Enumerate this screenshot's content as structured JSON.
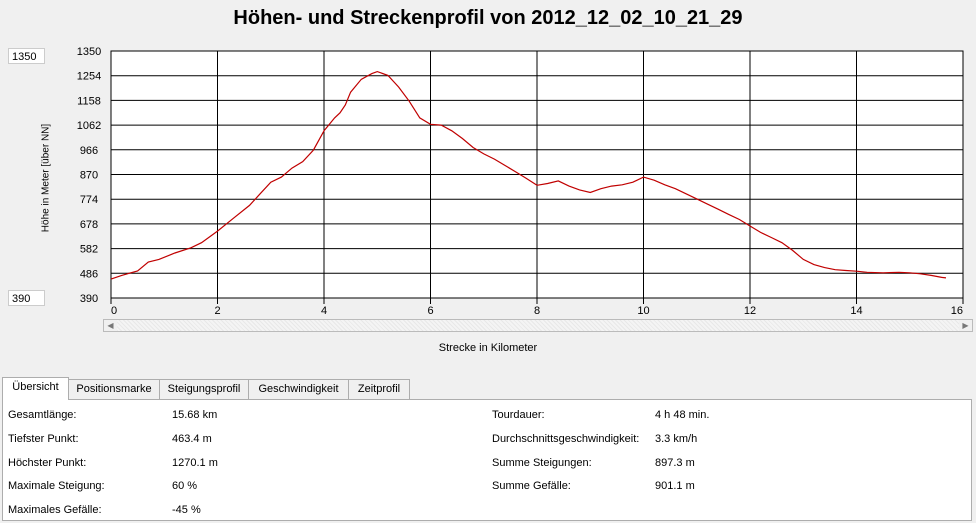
{
  "title": "Höhen- und Streckenprofil von 2012_12_02_10_21_29",
  "ymax_box": "1350",
  "ymin_box": "390",
  "chart_data": {
    "type": "line",
    "title": "Höhen- und Streckenprofil von 2012_12_02_10_21_29",
    "xlabel": "Strecke in Kilometer",
    "ylabel": "Höhe in Meter [über NN]",
    "xlim": [
      0,
      16
    ],
    "ylim": [
      390,
      1350
    ],
    "grid": true,
    "color": "#c00000",
    "x_ticks": [
      "0",
      "2",
      "4",
      "6",
      "8",
      "10",
      "12",
      "14",
      "16"
    ],
    "y_ticks": [
      "1350",
      "1254",
      "1158",
      "1062",
      "966",
      "870",
      "774",
      "678",
      "582",
      "486",
      "390"
    ],
    "x": [
      0,
      0.2,
      0.5,
      0.7,
      0.9,
      1.2,
      1.5,
      1.7,
      2.0,
      2.3,
      2.6,
      2.8,
      3.0,
      3.2,
      3.4,
      3.6,
      3.8,
      4.0,
      4.2,
      4.3,
      4.4,
      4.5,
      4.7,
      4.9,
      5.0,
      5.2,
      5.4,
      5.6,
      5.8,
      6.0,
      6.2,
      6.4,
      6.6,
      6.8,
      7.0,
      7.2,
      7.4,
      7.6,
      7.8,
      8.0,
      8.2,
      8.4,
      8.6,
      8.8,
      9.0,
      9.2,
      9.4,
      9.6,
      9.8,
      10.0,
      10.2,
      10.4,
      10.6,
      10.8,
      11.0,
      11.2,
      11.4,
      11.6,
      11.8,
      12.0,
      12.2,
      12.4,
      12.6,
      12.8,
      13.0,
      13.2,
      13.4,
      13.6,
      13.8,
      14.0,
      14.2,
      14.5,
      14.8,
      15.0,
      15.2,
      15.4,
      15.6,
      15.68
    ],
    "y": [
      463.4,
      478,
      495,
      530,
      540,
      565,
      585,
      605,
      650,
      700,
      750,
      795,
      840,
      860,
      895,
      920,
      965,
      1040,
      1090,
      1110,
      1140,
      1190,
      1240,
      1262,
      1270.1,
      1255,
      1210,
      1155,
      1090,
      1065,
      1062,
      1040,
      1010,
      975,
      950,
      930,
      905,
      880,
      855,
      828,
      835,
      845,
      825,
      810,
      800,
      815,
      825,
      830,
      840,
      860,
      848,
      830,
      815,
      795,
      775,
      755,
      735,
      715,
      695,
      670,
      645,
      625,
      605,
      575,
      540,
      520,
      508,
      500,
      497,
      494,
      490,
      488,
      490,
      488,
      484,
      478,
      470,
      468
    ]
  },
  "tabs": [
    "Übersicht",
    "Positionsmarke",
    "Steigungsprofil",
    "Geschwindigkeit",
    "Zeitprofil"
  ],
  "stats_left": [
    {
      "label": "Gesamtlänge:",
      "value": "15.68 km"
    },
    {
      "label": "Tiefster Punkt:",
      "value": "463.4 m"
    },
    {
      "label": "Höchster Punkt:",
      "value": "1270.1 m"
    },
    {
      "label": "Maximale Steigung:",
      "value": "60 %"
    },
    {
      "label": "Maximales Gefälle:",
      "value": "-45 %"
    }
  ],
  "stats_right": [
    {
      "label": "Tourdauer:",
      "value": "4 h 48 min."
    },
    {
      "label": "Durchschnittsgeschwindigkeit:",
      "value": "3.3 km/h"
    },
    {
      "label": "Summe Steigungen:",
      "value": "897.3 m"
    },
    {
      "label": "Summe Gefälle:",
      "value": "901.1 m"
    }
  ]
}
